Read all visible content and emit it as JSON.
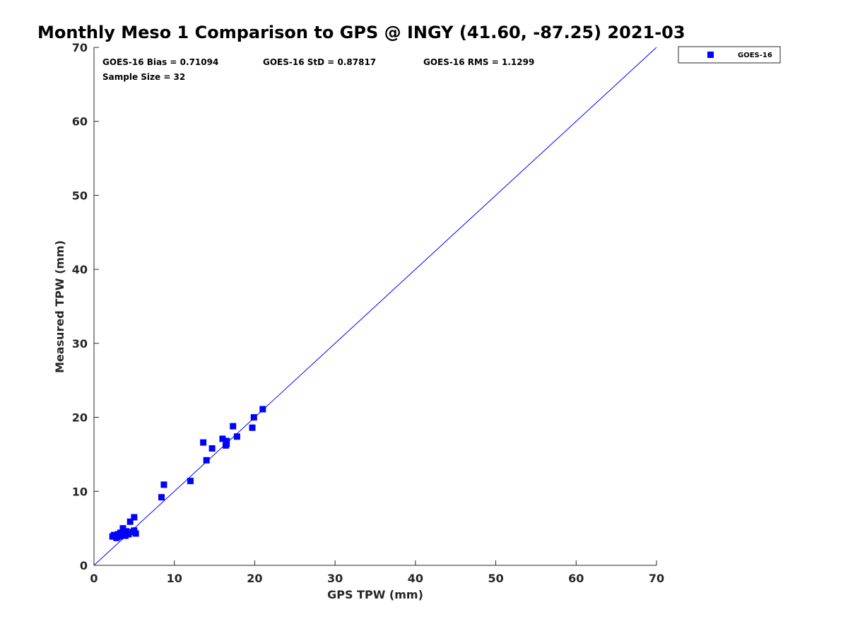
{
  "chart_data": {
    "type": "scatter",
    "title": "Monthly Meso 1 Comparison to GPS @ INGY (41.60, -87.25) 2021-03",
    "xlabel": "GPS TPW (mm)",
    "ylabel": "Measured TPW (mm)",
    "xlim": [
      0,
      70
    ],
    "ylim": [
      0,
      70
    ],
    "xticks": [
      0,
      10,
      20,
      30,
      40,
      50,
      60,
      70
    ],
    "yticks": [
      0,
      10,
      20,
      30,
      40,
      50,
      60,
      70
    ],
    "grid": false,
    "legend_position": "outside-top-right",
    "reference_line": {
      "x": [
        0,
        70
      ],
      "y": [
        0,
        70
      ],
      "color": "#0000ff"
    },
    "annotations": [
      {
        "text": "GOES-16 Bias = 0.71094"
      },
      {
        "text": "GOES-16 StD = 0.87817"
      },
      {
        "text": "GOES-16 RMS = 1.1299"
      },
      {
        "text": "Sample Size = 32"
      }
    ],
    "series": [
      {
        "name": "GOES-16",
        "color": "#0000ff",
        "marker": "square",
        "points": [
          [
            2.3,
            3.9
          ],
          [
            2.5,
            4.1
          ],
          [
            2.8,
            3.7
          ],
          [
            3.0,
            4.2
          ],
          [
            3.2,
            3.9
          ],
          [
            3.3,
            4.4
          ],
          [
            3.5,
            4.2
          ],
          [
            3.6,
            5.0
          ],
          [
            3.8,
            4.3
          ],
          [
            4.0,
            4.6
          ],
          [
            4.3,
            4.2
          ],
          [
            4.5,
            5.9
          ],
          [
            5.0,
            6.5
          ],
          [
            5.0,
            4.7
          ],
          [
            5.2,
            4.3
          ],
          [
            8.4,
            9.2
          ],
          [
            8.7,
            10.9
          ],
          [
            12.0,
            11.4
          ],
          [
            13.6,
            16.6
          ],
          [
            14.0,
            14.2
          ],
          [
            14.7,
            15.8
          ],
          [
            16.0,
            17.1
          ],
          [
            16.4,
            16.2
          ],
          [
            16.5,
            16.8
          ],
          [
            16.5,
            16.4
          ],
          [
            17.3,
            18.8
          ],
          [
            17.8,
            17.4
          ],
          [
            19.7,
            18.6
          ],
          [
            19.9,
            20.0
          ],
          [
            21.0,
            21.1
          ],
          [
            4.8,
            4.5
          ],
          [
            3.9,
            4.0
          ]
        ]
      }
    ]
  }
}
